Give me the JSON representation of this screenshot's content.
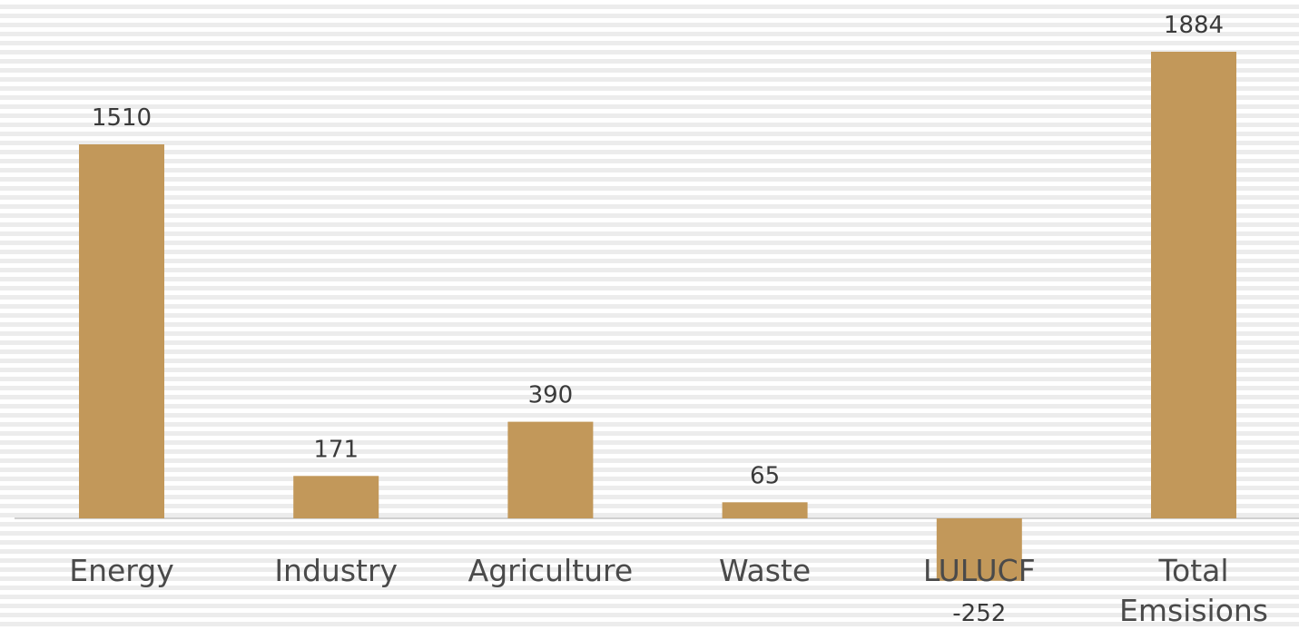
{
  "chart_data": {
    "type": "bar",
    "categories": [
      [
        "Energy"
      ],
      [
        "Industry"
      ],
      [
        "Agriculture"
      ],
      [
        "Waste"
      ],
      [
        "LULUCF"
      ],
      [
        "Total",
        "Emsisions"
      ]
    ],
    "values": [
      1510,
      171,
      390,
      65,
      -252,
      1884
    ],
    "data_labels": [
      "1510",
      "171",
      "390",
      "65",
      "-252",
      "1884"
    ],
    "bar_color": "#c2985a",
    "axis_color": "#d0d0d0",
    "grid": false,
    "legend": "none"
  }
}
